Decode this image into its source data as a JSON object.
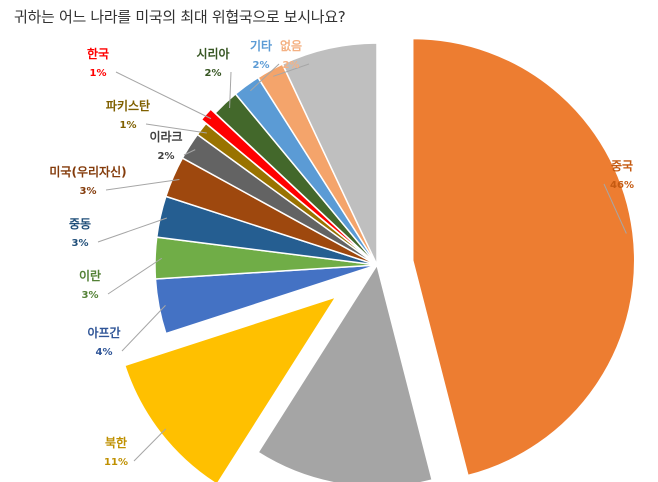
{
  "chart_data": {
    "type": "pie",
    "title": "귀하는 어느 나라를 미국의 최대 위협국으로 보시나요?",
    "slices": [
      {
        "name": "중국",
        "value": 46,
        "label": "46%",
        "color": "#ED7D31",
        "label_color": "#C55A11"
      },
      {
        "name": "",
        "value": 13,
        "label": "",
        "color": "#A5A5A5",
        "label_color": "#7F7F7F"
      },
      {
        "name": "북한",
        "value": 11,
        "label": "11%",
        "color": "#FFC000",
        "label_color": "#BF9000"
      },
      {
        "name": "아프간",
        "value": 4,
        "label": "4%",
        "color": "#4472C4",
        "label_color": "#2F5597"
      },
      {
        "name": "이란",
        "value": 3,
        "label": "3%",
        "color": "#70AD47",
        "label_color": "#538135"
      },
      {
        "name": "중동",
        "value": 3,
        "label": "3%",
        "color": "#255E91",
        "label_color": "#1F4E79"
      },
      {
        "name": "미국(우리자신)",
        "value": 3,
        "label": "3%",
        "color": "#9E480E",
        "label_color": "#843C0C"
      },
      {
        "name": "이라크",
        "value": 2,
        "label": "2%",
        "color": "#636363",
        "label_color": "#404040"
      },
      {
        "name": "파키스탄",
        "value": 1,
        "label": "1%",
        "color": "#997300",
        "label_color": "#7F6000"
      },
      {
        "name": "한국",
        "value": 1,
        "label": "1%",
        "color": "#FF0000",
        "label_color": "#FF0000"
      },
      {
        "name": "시리아",
        "value": 2,
        "label": "2%",
        "color": "#43682B",
        "label_color": "#375623"
      },
      {
        "name": "기타",
        "value": 2,
        "label": "2%",
        "color": "#5B9BD5",
        "label_color": "#5B9BD5"
      },
      {
        "name": "없음",
        "value": 2,
        "label": "2%",
        "color": "#F4A46B",
        "label_color": "#F4B183"
      },
      {
        "name": "",
        "value": 7,
        "label": "",
        "color": "#BFBFBF",
        "label_color": "#7F7F7F"
      }
    ]
  }
}
